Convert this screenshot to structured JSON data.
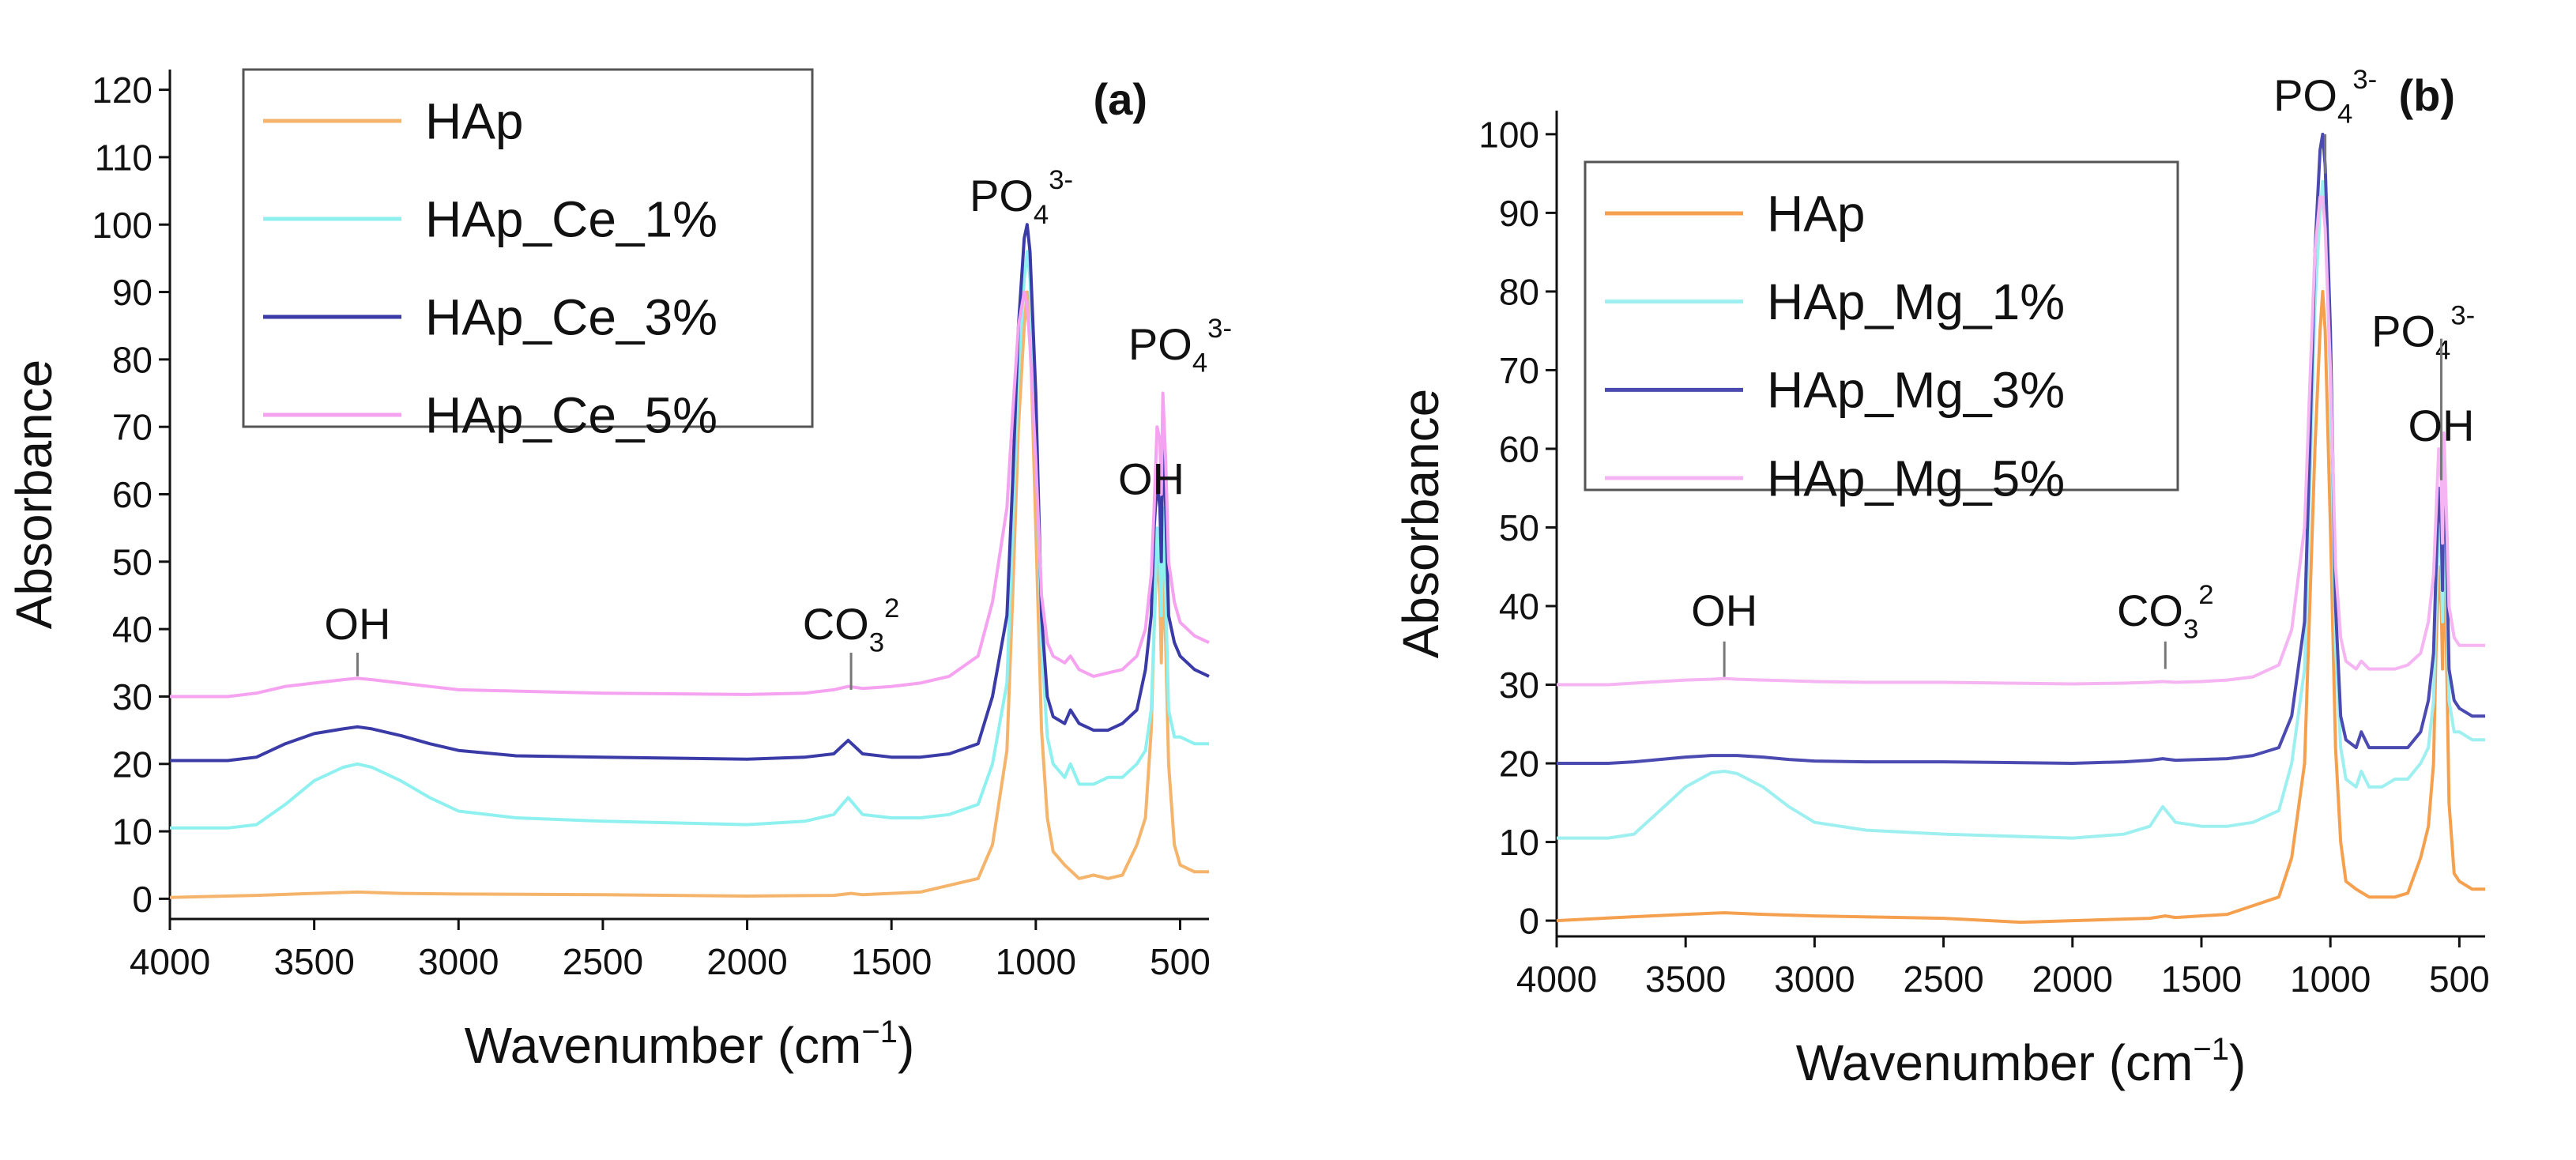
{
  "chart_data": [
    {
      "type": "line",
      "panel_label": "(a)",
      "xlabel": "Wavenumber (cm",
      "xlabel_sup": "−1",
      "xlabel_close": ")",
      "ylabel": "Absorbance",
      "xlim": [
        4000,
        400
      ],
      "ylim": [
        -3,
        123
      ],
      "xticks": [
        4000,
        3500,
        3000,
        2500,
        2000,
        1500,
        1000,
        500
      ],
      "yticks": [
        0,
        10,
        20,
        30,
        40,
        50,
        60,
        70,
        80,
        90,
        100,
        110,
        120
      ],
      "colors": {
        "HAp": "#f5b46b",
        "HAp_1": "#8ff0f0",
        "HAp_3": "#3b3ba8",
        "HAp_5": "#f5a2f0"
      },
      "series": [
        {
          "name": "HAp",
          "color": "#f5b46b",
          "x": [
            4000,
            3700,
            3500,
            3350,
            3200,
            3000,
            2500,
            2000,
            1700,
            1640,
            1600,
            1400,
            1200,
            1150,
            1100,
            1080,
            1060,
            1040,
            1030,
            1020,
            1000,
            980,
            960,
            940,
            900,
            850,
            800,
            750,
            700,
            650,
            620,
            600,
            590,
            580,
            570,
            565,
            560,
            550,
            540,
            520,
            500,
            450,
            400
          ],
          "values": [
            0.2,
            0.5,
            0.8,
            1,
            0.8,
            0.7,
            0.6,
            0.4,
            0.5,
            0.8,
            0.6,
            1,
            3,
            8,
            22,
            45,
            70,
            85,
            90,
            85,
            55,
            25,
            12,
            7,
            5,
            3,
            3.5,
            3,
            3.5,
            8,
            12,
            25,
            40,
            52,
            45,
            35,
            48,
            38,
            20,
            8,
            5,
            4,
            4
          ]
        },
        {
          "name": "HAp_Ce_1%",
          "color": "#8ff0f0",
          "x": [
            4000,
            3800,
            3700,
            3600,
            3500,
            3400,
            3350,
            3300,
            3200,
            3100,
            3000,
            2800,
            2500,
            2000,
            1800,
            1700,
            1650,
            1600,
            1500,
            1400,
            1300,
            1200,
            1150,
            1100,
            1080,
            1060,
            1040,
            1030,
            1020,
            1000,
            980,
            960,
            940,
            900,
            880,
            850,
            800,
            750,
            700,
            650,
            620,
            600,
            590,
            580,
            570,
            565,
            560,
            550,
            540,
            520,
            500,
            450,
            400
          ],
          "values": [
            10.5,
            10.5,
            11,
            14,
            17.5,
            19.5,
            20,
            19.5,
            17.5,
            15,
            13,
            12,
            11.5,
            11,
            11.5,
            12.5,
            15,
            12.5,
            12,
            12,
            12.5,
            14,
            20,
            32,
            55,
            78,
            92,
            96,
            92,
            70,
            38,
            24,
            20,
            18,
            20,
            17,
            17,
            18,
            18,
            20,
            22,
            28,
            40,
            55,
            50,
            42,
            58,
            45,
            28,
            24,
            24,
            23,
            23
          ]
        },
        {
          "name": "HAp_Ce_3%",
          "color": "#3b3ba8",
          "x": [
            4000,
            3800,
            3700,
            3600,
            3500,
            3400,
            3350,
            3300,
            3200,
            3100,
            3000,
            2800,
            2500,
            2000,
            1800,
            1700,
            1650,
            1600,
            1500,
            1400,
            1300,
            1200,
            1150,
            1100,
            1080,
            1060,
            1040,
            1030,
            1020,
            1000,
            980,
            960,
            940,
            900,
            880,
            850,
            800,
            750,
            700,
            650,
            620,
            600,
            590,
            580,
            570,
            565,
            560,
            550,
            540,
            520,
            500,
            450,
            400
          ],
          "values": [
            20.5,
            20.5,
            21,
            23,
            24.5,
            25.2,
            25.5,
            25.2,
            24.2,
            23,
            22,
            21.2,
            21,
            20.7,
            21,
            21.5,
            23.5,
            21.5,
            21,
            21,
            21.5,
            23,
            30,
            42,
            62,
            85,
            98,
            100,
            96,
            75,
            42,
            30,
            27,
            26,
            28,
            26,
            25,
            25,
            26,
            28,
            34,
            42,
            55,
            62,
            58,
            50,
            70,
            58,
            42,
            38,
            36,
            34,
            33
          ]
        },
        {
          "name": "HAp_Ce_5%",
          "color": "#f5a2f0",
          "x": [
            4000,
            3800,
            3700,
            3600,
            3500,
            3400,
            3350,
            3300,
            3200,
            3100,
            3000,
            2800,
            2500,
            2000,
            1800,
            1700,
            1650,
            1600,
            1500,
            1400,
            1300,
            1200,
            1150,
            1100,
            1080,
            1060,
            1040,
            1030,
            1020,
            1000,
            980,
            960,
            940,
            900,
            880,
            850,
            800,
            750,
            700,
            650,
            620,
            600,
            590,
            580,
            570,
            565,
            560,
            550,
            540,
            520,
            500,
            450,
            400
          ],
          "values": [
            30,
            30,
            30.5,
            31.5,
            32,
            32.5,
            32.7,
            32.5,
            32,
            31.5,
            31,
            30.8,
            30.5,
            30.3,
            30.5,
            31,
            31.5,
            31.2,
            31.5,
            32,
            33,
            36,
            44,
            58,
            72,
            85,
            90,
            88,
            82,
            65,
            45,
            38,
            36,
            35,
            36,
            34,
            33,
            33.5,
            34,
            36,
            40,
            48,
            58,
            70,
            68,
            60,
            75,
            65,
            50,
            44,
            41,
            39,
            38
          ]
        }
      ],
      "legend": {
        "position": "top-left",
        "entries": [
          "HAp",
          "HAp_Ce_1%",
          "HAp_Ce_3%",
          "HAp_Ce_5%"
        ]
      },
      "annotations": [
        {
          "id": "oh1",
          "base": "OH",
          "x": 3350,
          "y": 38.5,
          "line_y": [
            33,
            36.5
          ]
        },
        {
          "id": "co3",
          "base": "CO",
          "sub": "3",
          "sup": "2",
          "x": 1640,
          "y": 38.5,
          "line_y": [
            31,
            36.5
          ]
        },
        {
          "id": "po4-1",
          "base": "PO",
          "sub": "4",
          "sup": "3-",
          "x": 1050,
          "y": 102,
          "line_y": null
        },
        {
          "id": "oh2",
          "base": "OH",
          "x": 600,
          "y": 60,
          "line_y": null
        },
        {
          "id": "po4-2",
          "base": "PO",
          "sub": "4",
          "sup": "3-",
          "x": 500,
          "y": 80,
          "line_y": null
        }
      ]
    },
    {
      "type": "line",
      "panel_label": "(b)",
      "xlabel": "Wavenumber (cm",
      "xlabel_sup": "−1",
      "xlabel_close": ")",
      "ylabel": "Absorbance",
      "xlim": [
        4000,
        400
      ],
      "ylim": [
        -2,
        103
      ],
      "xticks": [
        4000,
        3500,
        3000,
        2500,
        2000,
        1500,
        1000,
        500
      ],
      "yticks": [
        0,
        10,
        20,
        30,
        40,
        50,
        60,
        70,
        80,
        90,
        100
      ],
      "colors": {
        "HAp": "#f5a04f",
        "HAp_1": "#9ef0f0",
        "HAp_3": "#4a4ab0",
        "HAp_5": "#f5b4f2"
      },
      "series": [
        {
          "name": "HAp",
          "color": "#f5a04f",
          "x": [
            4000,
            3700,
            3500,
            3350,
            3200,
            3000,
            2500,
            2200,
            2000,
            1700,
            1640,
            1600,
            1400,
            1200,
            1150,
            1100,
            1080,
            1060,
            1040,
            1030,
            1020,
            1000,
            980,
            960,
            940,
            900,
            850,
            800,
            750,
            700,
            650,
            620,
            600,
            590,
            580,
            570,
            565,
            560,
            550,
            540,
            520,
            500,
            450,
            400
          ],
          "values": [
            0,
            0.5,
            0.8,
            1,
            0.8,
            0.6,
            0.3,
            -0.2,
            0,
            0.3,
            0.6,
            0.4,
            0.8,
            3,
            8,
            20,
            40,
            60,
            75,
            80,
            75,
            50,
            22,
            10,
            5,
            4,
            3,
            3,
            3,
            3.5,
            8,
            12,
            20,
            35,
            45,
            40,
            32,
            45,
            35,
            15,
            6,
            5,
            4,
            4
          ]
        },
        {
          "name": "HAp_Mg_1%",
          "color": "#9ef0f0",
          "x": [
            4000,
            3800,
            3700,
            3600,
            3500,
            3400,
            3350,
            3300,
            3200,
            3100,
            3000,
            2800,
            2500,
            2000,
            1800,
            1700,
            1650,
            1600,
            1500,
            1400,
            1300,
            1200,
            1150,
            1100,
            1080,
            1060,
            1040,
            1030,
            1020,
            1000,
            980,
            960,
            940,
            900,
            880,
            850,
            800,
            750,
            700,
            650,
            620,
            600,
            590,
            580,
            570,
            565,
            560,
            550,
            540,
            520,
            500,
            450,
            400
          ],
          "values": [
            10.5,
            10.5,
            11,
            14,
            17,
            18.8,
            19,
            18.7,
            17,
            14.5,
            12.5,
            11.5,
            11,
            10.5,
            11,
            12,
            14.5,
            12.5,
            12,
            12,
            12.5,
            14,
            20,
            32,
            55,
            78,
            90,
            94,
            90,
            68,
            35,
            22,
            18,
            17,
            19,
            17,
            17,
            18,
            18,
            20,
            22,
            28,
            40,
            50,
            46,
            38,
            52,
            42,
            28,
            24,
            24,
            23,
            23
          ]
        },
        {
          "name": "HAp_Mg_3%",
          "color": "#4a4ab0",
          "x": [
            4000,
            3800,
            3700,
            3600,
            3500,
            3400,
            3350,
            3300,
            3200,
            3100,
            3000,
            2800,
            2500,
            2000,
            1800,
            1700,
            1650,
            1600,
            1500,
            1400,
            1300,
            1200,
            1150,
            1100,
            1080,
            1060,
            1040,
            1030,
            1020,
            1000,
            980,
            960,
            940,
            900,
            880,
            850,
            800,
            750,
            700,
            650,
            620,
            600,
            590,
            580,
            570,
            565,
            560,
            550,
            540,
            520,
            500,
            450,
            400
          ],
          "values": [
            20,
            20,
            20.2,
            20.5,
            20.8,
            21,
            21,
            21,
            20.8,
            20.5,
            20.3,
            20.2,
            20.2,
            20,
            20.2,
            20.4,
            20.6,
            20.4,
            20.5,
            20.6,
            21,
            22,
            26,
            38,
            60,
            85,
            98,
            100,
            96,
            75,
            40,
            26,
            23,
            22,
            24,
            22,
            22,
            22,
            22,
            24,
            28,
            34,
            45,
            55,
            50,
            42,
            58,
            48,
            32,
            28,
            27,
            26,
            26
          ]
        },
        {
          "name": "HAp_Mg_5%",
          "color": "#f5b4f2",
          "x": [
            4000,
            3800,
            3700,
            3600,
            3500,
            3400,
            3350,
            3300,
            3200,
            3100,
            3000,
            2800,
            2500,
            2000,
            1800,
            1700,
            1650,
            1600,
            1500,
            1400,
            1300,
            1200,
            1150,
            1100,
            1080,
            1060,
            1040,
            1030,
            1020,
            1000,
            980,
            960,
            940,
            900,
            880,
            850,
            800,
            750,
            700,
            650,
            620,
            600,
            590,
            580,
            570,
            565,
            560,
            550,
            540,
            520,
            500,
            450,
            400
          ],
          "values": [
            30,
            30,
            30.2,
            30.4,
            30.6,
            30.7,
            30.8,
            30.7,
            30.6,
            30.5,
            30.4,
            30.3,
            30.3,
            30.1,
            30.2,
            30.3,
            30.4,
            30.3,
            30.4,
            30.6,
            31,
            32.5,
            37,
            50,
            68,
            85,
            92,
            92,
            88,
            70,
            45,
            36,
            33,
            32,
            33,
            32,
            32,
            32,
            32.5,
            34,
            38,
            44,
            52,
            60,
            56,
            48,
            62,
            52,
            40,
            36,
            35,
            35,
            35
          ]
        }
      ],
      "legend": {
        "position": "top-left",
        "entries": [
          "HAp",
          "HAp_Mg_1%",
          "HAp_Mg_3%",
          "HAp_Mg_5%"
        ]
      },
      "annotations": [
        {
          "id": "oh1",
          "base": "OH",
          "x": 3350,
          "y": 37.5,
          "line_y": [
            31,
            35.5
          ]
        },
        {
          "id": "co3",
          "base": "CO",
          "sub": "3",
          "sup": "2",
          "x": 1640,
          "y": 37.5,
          "line_y": [
            32,
            35.5
          ]
        },
        {
          "id": "po4-1",
          "base": "PO",
          "sub": "4",
          "sup": "3-",
          "x": 1020,
          "y": 103,
          "line_y": [
            100,
            95
          ]
        },
        {
          "id": "po4-2",
          "base": "PO",
          "sub": "4",
          "sup": "3-",
          "x": 640,
          "y": 73,
          "line_y": null
        },
        {
          "id": "oh2",
          "base": "OH",
          "x": 570,
          "y": 61,
          "line_y": [
            74,
            56
          ]
        }
      ]
    }
  ]
}
